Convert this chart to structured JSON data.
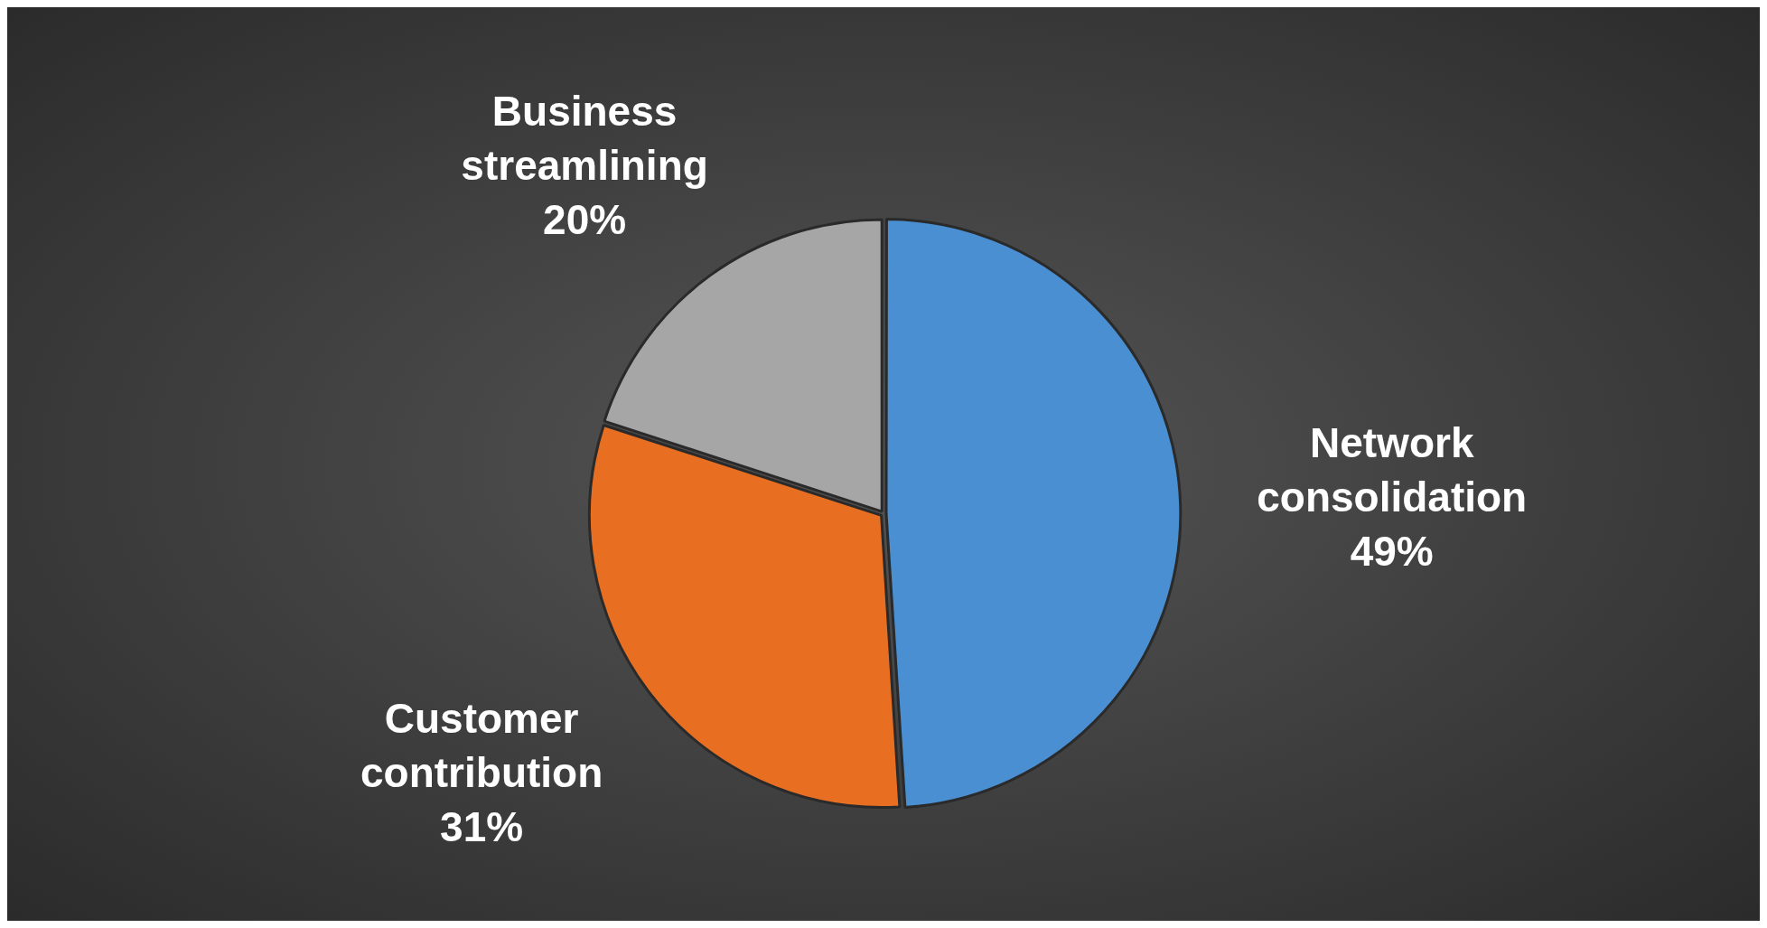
{
  "chart_data": {
    "type": "pie",
    "categories": [
      "Network consolidation",
      "Customer contribution",
      "Business streamlining"
    ],
    "values": [
      49,
      31,
      20
    ],
    "colors": [
      "#4a8fd2",
      "#e86e22",
      "#a6a6a6"
    ],
    "value_labels": [
      "49%",
      "31%",
      "20%"
    ],
    "legend": false
  }
}
